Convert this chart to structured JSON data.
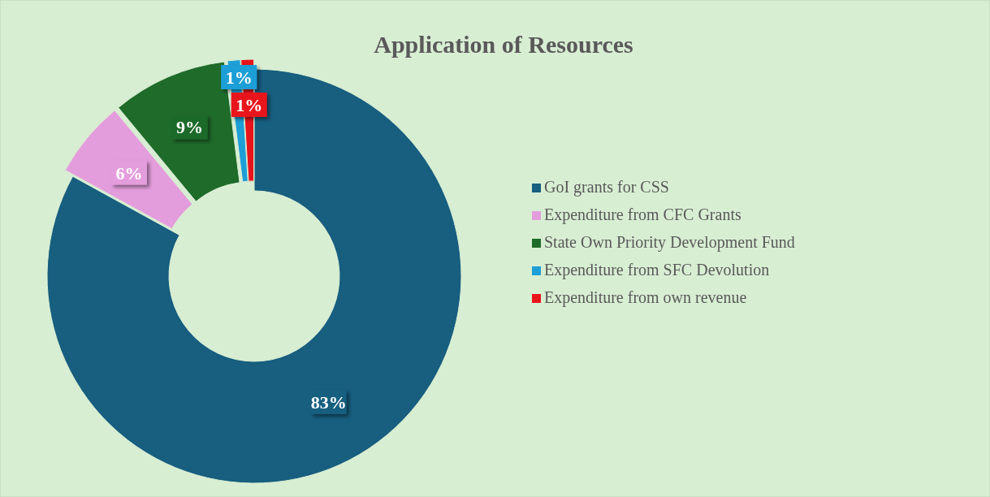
{
  "chart_data": {
    "type": "donut",
    "title": "Application of Resources",
    "categories": [
      "GoI grants for CSS",
      "Expenditure from CFC Grants",
      "State Own Priority Development Fund",
      "Expenditure from SFC Devolution",
      "Expenditure from own revenue"
    ],
    "values": [
      83,
      6,
      9,
      1,
      1
    ],
    "colors": [
      "#175e7f",
      "#e49ddc",
      "#1f6b2a",
      "#1e9fd6",
      "#e8141c"
    ],
    "value_labels": [
      "83%",
      "6%",
      "9%",
      "1%",
      "1%"
    ],
    "legend": "right"
  }
}
